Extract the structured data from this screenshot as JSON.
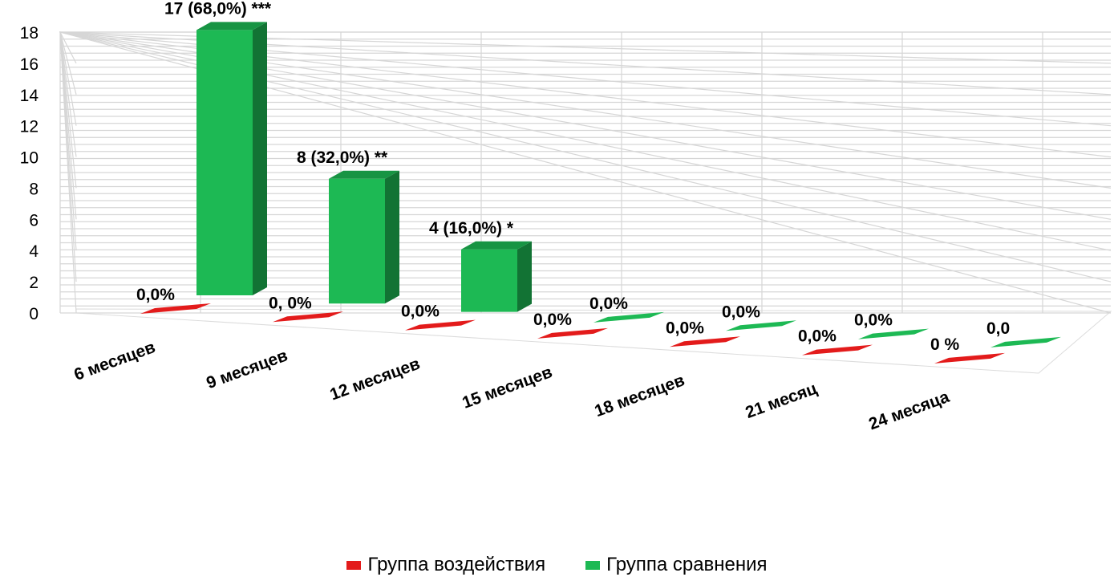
{
  "chart_data": {
    "type": "bar",
    "title": "",
    "xlabel": "",
    "ylabel": "",
    "ylim": [
      0,
      18
    ],
    "y_ticks": [
      "0",
      "2",
      "4",
      "6",
      "8",
      "10",
      "12",
      "14",
      "16",
      "18"
    ],
    "categories": [
      "6 месяцев",
      "9 месяцев",
      "12 месяцев",
      "15 месяцев",
      "18 месяцев",
      "21 месяц",
      "24 месяца"
    ],
    "grid": true,
    "legend_position": "bottom",
    "series": [
      {
        "name": "Группа воздействия",
        "color": "#e31b1b",
        "values": [
          0,
          0,
          0,
          0,
          0,
          0,
          0
        ],
        "labels": [
          "0,0%",
          "0, 0%",
          "0,0%",
          "0,0%",
          "0,0%",
          "0,0%",
          "0 %"
        ]
      },
      {
        "name": "Группа сравнения",
        "color": "#1db954",
        "values": [
          17,
          8,
          4,
          0,
          0,
          0,
          0
        ],
        "labels": [
          "17 (68,0%)  ***",
          "8 (32,0%)  **",
          "4 (16,0%)  *",
          "0,0%",
          "0,0%",
          "0,0%",
          "0,0"
        ]
      }
    ]
  }
}
